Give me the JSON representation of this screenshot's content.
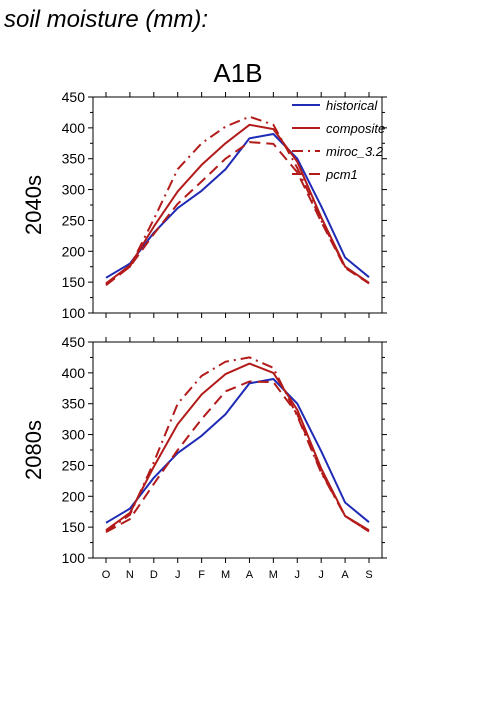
{
  "figure": {
    "title": "soil moisture (mm):",
    "panel_title": "A1B"
  },
  "legend": {
    "entries": [
      {
        "name": "historical",
        "color": "#1f2bb5",
        "dash": "solid"
      },
      {
        "name": "composite",
        "color": "#b31b1b",
        "dash": "solid"
      },
      {
        "name": "miroc_3.2",
        "color": "#b31b1b",
        "dash": "dashdot"
      },
      {
        "name": "pcm1",
        "color": "#b31b1b",
        "dash": "dash"
      }
    ]
  },
  "chart_data": [
    {
      "type": "line",
      "row_label": "2040s",
      "title": "A1B",
      "categories": [
        "O",
        "N",
        "D",
        "J",
        "F",
        "M",
        "A",
        "M",
        "J",
        "J",
        "A",
        "S"
      ],
      "ylim": [
        100,
        450
      ],
      "yticks": [
        100,
        150,
        200,
        250,
        300,
        350,
        400,
        450
      ],
      "grid": false,
      "legend_placement": "top-right",
      "series": [
        {
          "name": "historical",
          "color": "#1f2bb5",
          "dash": "solid",
          "values": [
            157,
            180,
            230,
            270,
            298,
            333,
            383,
            390,
            350,
            273,
            190,
            158
          ]
        },
        {
          "name": "composite",
          "color": "#b31b1b",
          "dash": "solid",
          "values": [
            148,
            177,
            240,
            297,
            340,
            375,
            405,
            398,
            345,
            255,
            175,
            149
          ]
        },
        {
          "name": "miroc_3.2",
          "color": "#b31b1b",
          "dash": "dashdot",
          "values": [
            147,
            175,
            252,
            333,
            375,
            402,
            418,
            405,
            335,
            250,
            175,
            148
          ]
        },
        {
          "name": "pcm1",
          "color": "#b31b1b",
          "dash": "dash",
          "values": [
            145,
            175,
            228,
            277,
            313,
            350,
            377,
            374,
            328,
            248,
            173,
            148
          ]
        }
      ]
    },
    {
      "type": "line",
      "row_label": "2080s",
      "categories": [
        "O",
        "N",
        "D",
        "J",
        "F",
        "M",
        "A",
        "M",
        "J",
        "J",
        "A",
        "S"
      ],
      "ylim": [
        100,
        450
      ],
      "yticks": [
        100,
        150,
        200,
        250,
        300,
        350,
        400,
        450
      ],
      "grid": false,
      "series": [
        {
          "name": "historical",
          "color": "#1f2bb5",
          "dash": "solid",
          "values": [
            157,
            180,
            230,
            270,
            298,
            333,
            383,
            390,
            350,
            273,
            190,
            158
          ]
        },
        {
          "name": "composite",
          "color": "#b31b1b",
          "dash": "solid",
          "values": [
            145,
            173,
            248,
            317,
            365,
            398,
            415,
            400,
            340,
            245,
            168,
            145
          ]
        },
        {
          "name": "miroc_3.2",
          "color": "#b31b1b",
          "dash": "dashdot",
          "values": [
            143,
            170,
            255,
            350,
            395,
            418,
            425,
            408,
            330,
            238,
            168,
            143
          ]
        },
        {
          "name": "pcm1",
          "color": "#b31b1b",
          "dash": "dash",
          "values": [
            142,
            163,
            220,
            275,
            325,
            370,
            386,
            385,
            333,
            240,
            168,
            143
          ]
        }
      ]
    }
  ]
}
